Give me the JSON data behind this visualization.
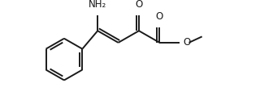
{
  "background_color": "#ffffff",
  "line_color": "#1a1a1a",
  "line_width": 1.4,
  "font_size": 8.5,
  "fig_width": 3.2,
  "fig_height": 1.34,
  "dpi": 100,
  "nh2_label": "NH₂",
  "o_ketone_label": "O",
  "o_ester_label": "O",
  "o_methoxy_label": "O"
}
